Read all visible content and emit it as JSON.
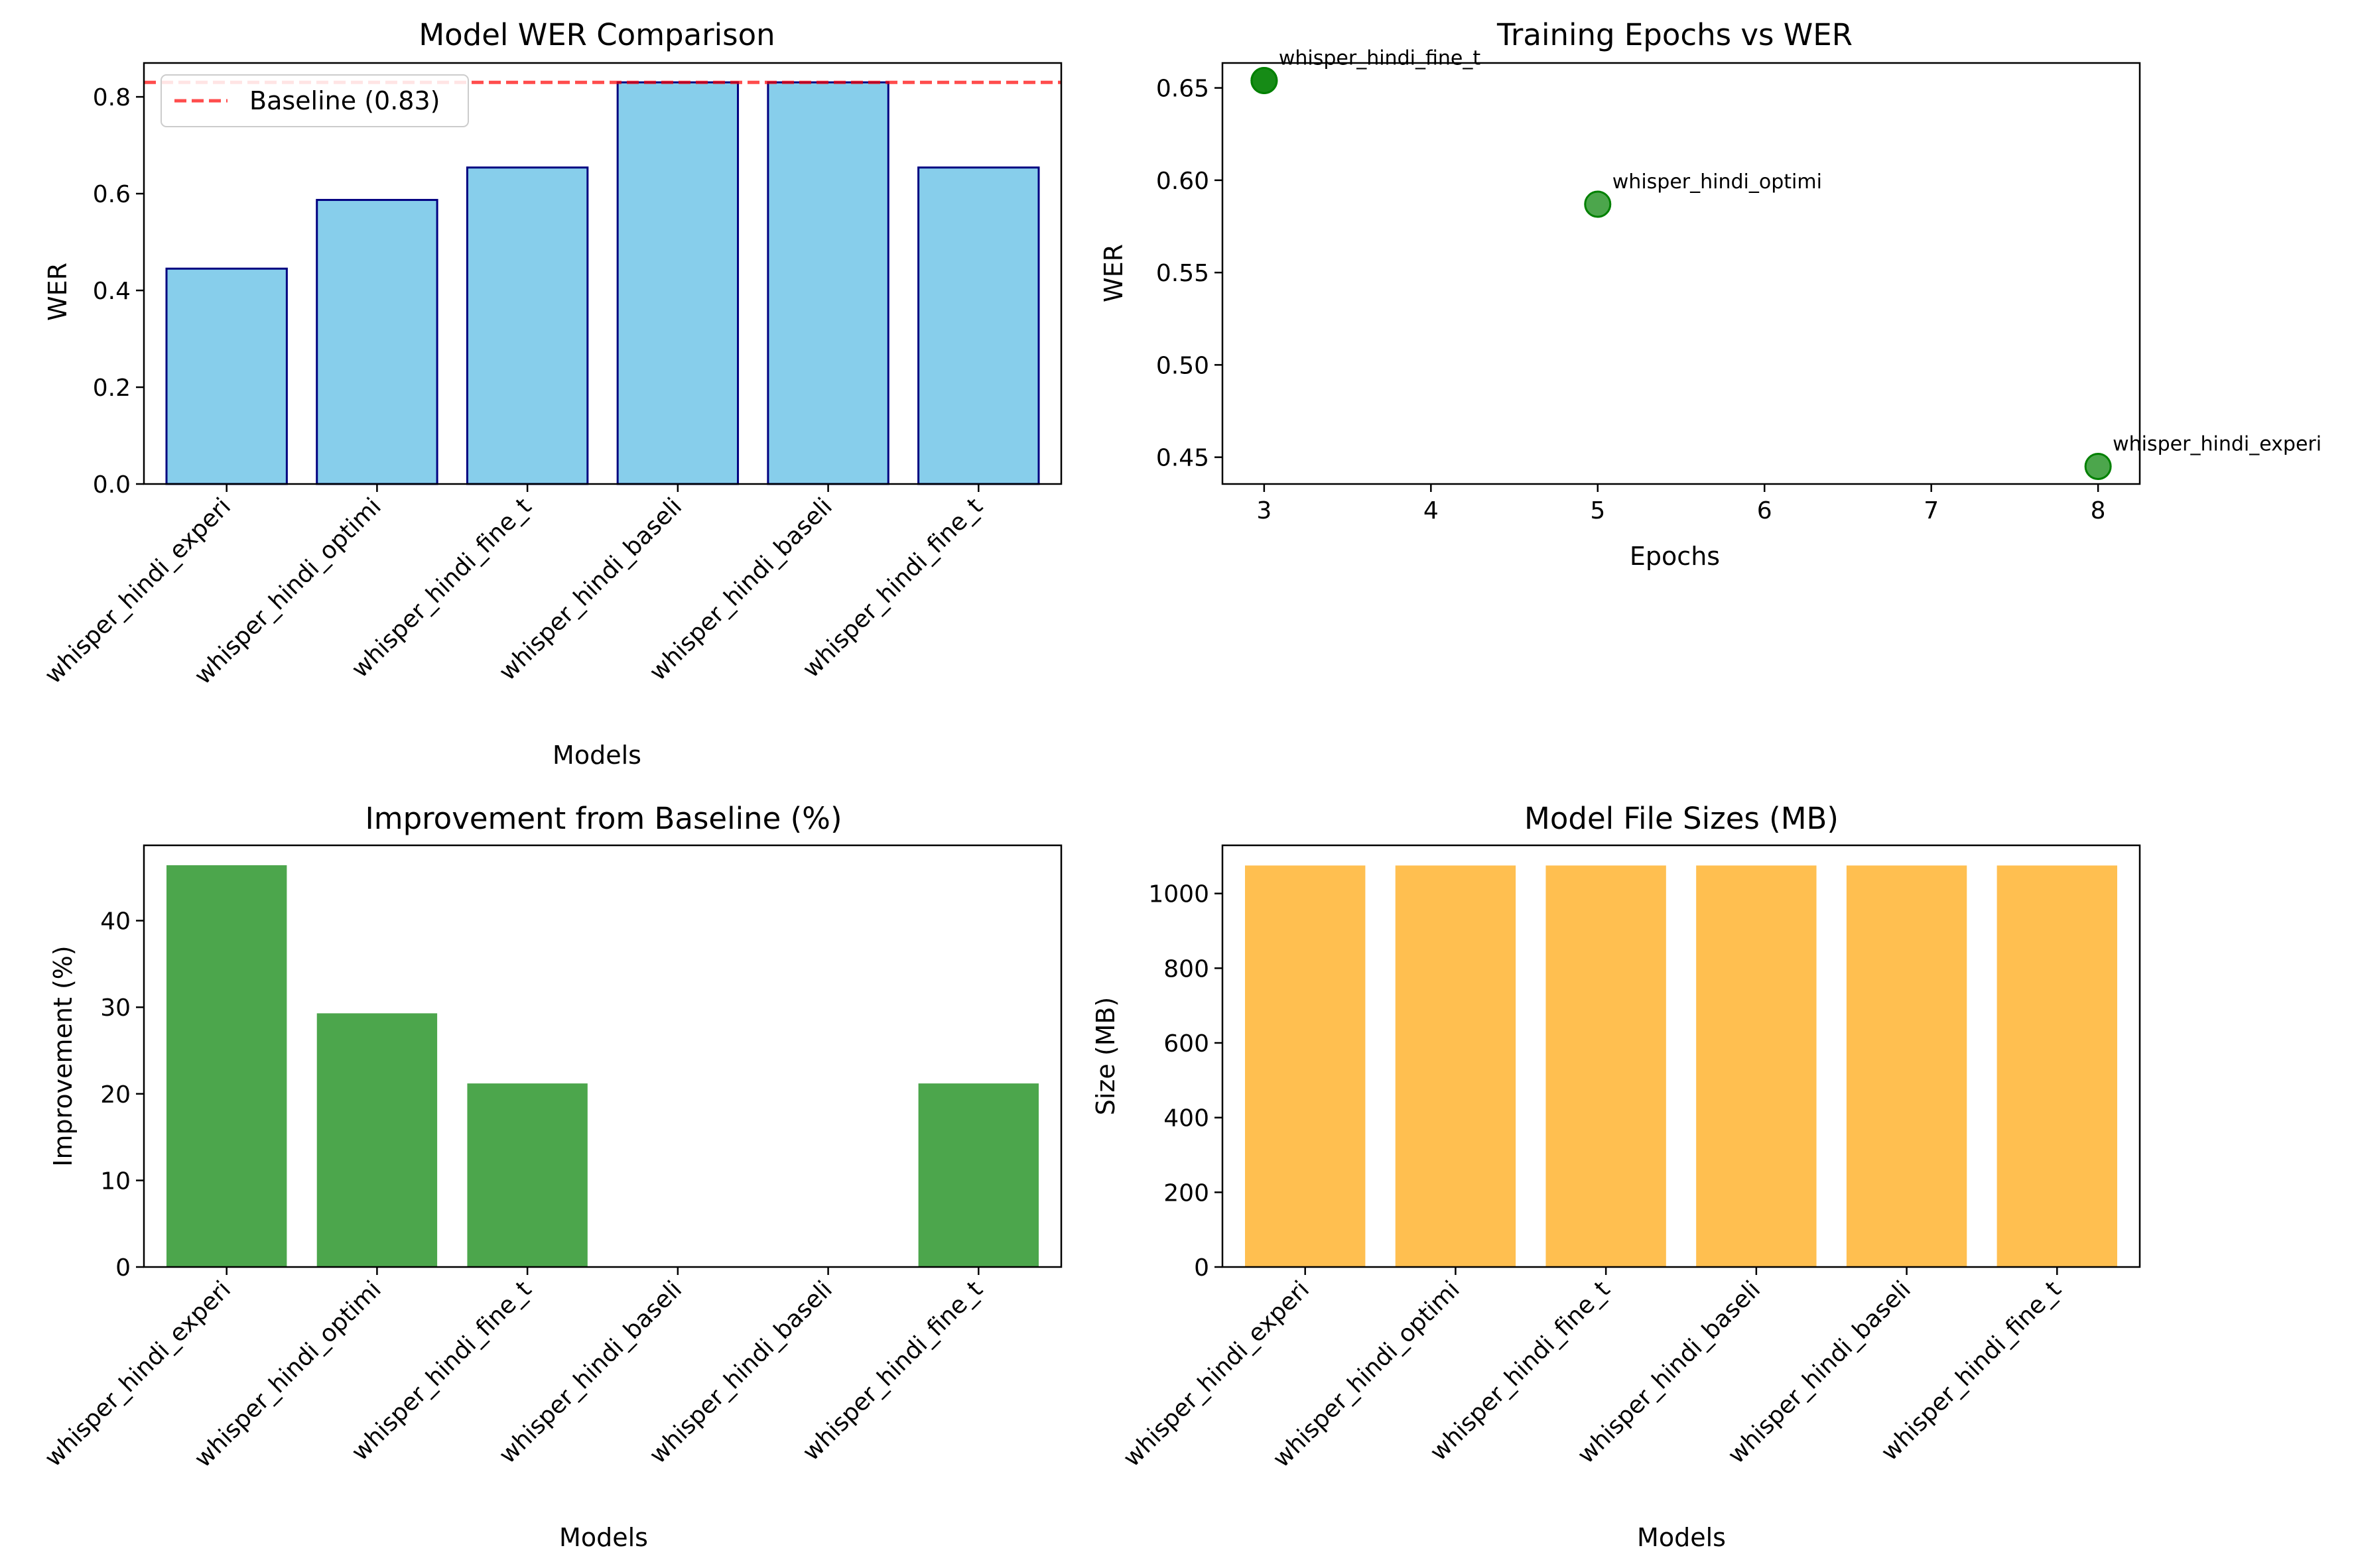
{
  "chart_data": [
    {
      "type": "bar",
      "title": "Model WER Comparison",
      "xlabel": "Models",
      "ylabel": "WER",
      "categories": [
        "whisper_hindi_experi",
        "whisper_hindi_optimi",
        "whisper_hindi_fine_t",
        "whisper_hindi_baseli",
        "whisper_hindi_baseli",
        "whisper_hindi_fine_t"
      ],
      "values": [
        0.445,
        0.587,
        0.654,
        0.83,
        0.83,
        0.654
      ],
      "ylim": [
        0,
        0.87
      ],
      "yticks": [
        0.0,
        0.2,
        0.4,
        0.6,
        0.8
      ],
      "ytick_labels": [
        "0.0",
        "0.2",
        "0.4",
        "0.6",
        "0.8"
      ],
      "bar_color": "#87CEEB",
      "edge_color": "#000080",
      "reference_line": {
        "value": 0.83,
        "label": "Baseline (0.83)",
        "color": "#FF0000",
        "style": "dashed"
      },
      "legend": "top-left"
    },
    {
      "type": "scatter",
      "title": "Training Epochs vs WER",
      "xlabel": "Epochs",
      "ylabel": "WER",
      "points": [
        {
          "x": 3,
          "y": 0.654,
          "label": "whisper_hindi_fine_t"
        },
        {
          "x": 3,
          "y": 0.654,
          "label": ""
        },
        {
          "x": 5,
          "y": 0.587,
          "label": "whisper_hindi_optimi"
        },
        {
          "x": 8,
          "y": 0.445,
          "label": "whisper_hindi_experi"
        }
      ],
      "xlim": [
        2.75,
        8.25
      ],
      "ylim": [
        0.4355,
        0.6635
      ],
      "xticks": [
        3,
        4,
        5,
        6,
        7,
        8
      ],
      "xtick_labels": [
        "3",
        "4",
        "5",
        "6",
        "7",
        "8"
      ],
      "yticks": [
        0.45,
        0.5,
        0.55,
        0.6,
        0.65
      ],
      "ytick_labels": [
        "0.45",
        "0.50",
        "0.55",
        "0.60",
        "0.65"
      ],
      "color": "#008000"
    },
    {
      "type": "bar",
      "title": "Improvement from Baseline (%)",
      "xlabel": "Models",
      "ylabel": "Improvement (%)",
      "categories": [
        "whisper_hindi_experi",
        "whisper_hindi_optimi",
        "whisper_hindi_fine_t",
        "whisper_hindi_baseli",
        "whisper_hindi_baseli",
        "whisper_hindi_fine_t"
      ],
      "values": [
        46.4,
        29.3,
        21.2,
        0,
        0,
        21.2
      ],
      "ylim": [
        0,
        48.7
      ],
      "yticks": [
        0,
        10,
        20,
        30,
        40
      ],
      "ytick_labels": [
        "0",
        "10",
        "20",
        "30",
        "40"
      ],
      "bar_color": "#4CA64C"
    },
    {
      "type": "bar",
      "title": "Model File Sizes (MB)",
      "xlabel": "Models",
      "ylabel": "Size (MB)",
      "categories": [
        "whisper_hindi_experi",
        "whisper_hindi_optimi",
        "whisper_hindi_fine_t",
        "whisper_hindi_baseli",
        "whisper_hindi_baseli",
        "whisper_hindi_fine_t"
      ],
      "values": [
        1075,
        1075,
        1075,
        1075,
        1075,
        1075
      ],
      "ylim": [
        0,
        1129
      ],
      "yticks": [
        0,
        200,
        400,
        600,
        800,
        1000
      ],
      "ytick_labels": [
        "0",
        "200",
        "400",
        "600",
        "800",
        "1000"
      ],
      "bar_color": "#FFBF50"
    }
  ]
}
